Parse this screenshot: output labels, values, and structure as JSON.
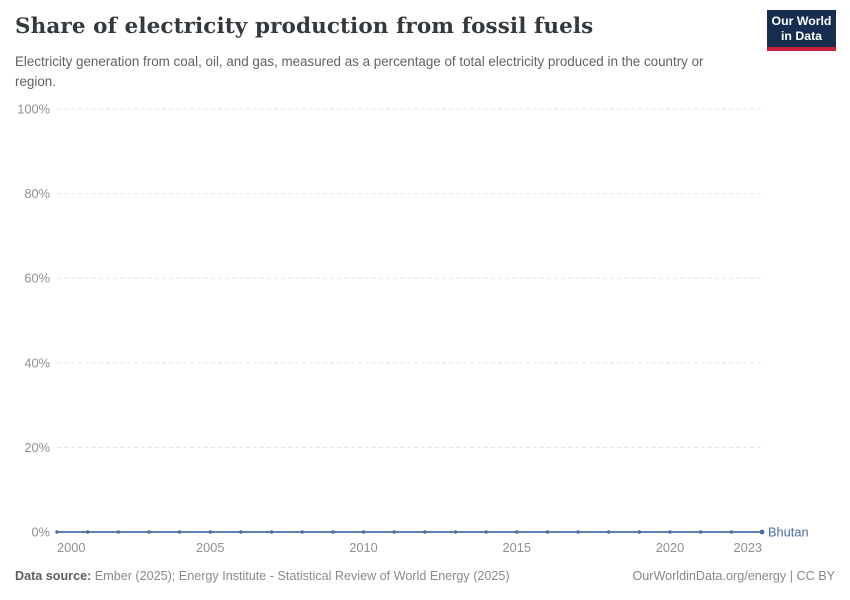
{
  "header": {
    "title": "Share of electricity production from fossil fuels",
    "subtitle": "Electricity generation from coal, oil, and gas, measured as a percentage of total electricity produced in the country or region.",
    "logo": {
      "line1": "Our World",
      "line2": "in Data"
    }
  },
  "chart_data": {
    "type": "line",
    "title": "Share of electricity production from fossil fuels",
    "x": [
      2000,
      2001,
      2002,
      2003,
      2004,
      2005,
      2006,
      2007,
      2008,
      2009,
      2010,
      2011,
      2012,
      2013,
      2014,
      2015,
      2016,
      2017,
      2018,
      2019,
      2020,
      2021,
      2022,
      2023
    ],
    "series": [
      {
        "name": "Bhutan",
        "color": "#4a6ba8",
        "values": [
          0,
          0,
          0,
          0,
          0,
          0,
          0,
          0,
          0,
          0,
          0,
          0,
          0,
          0,
          0,
          0,
          0,
          0,
          0,
          0,
          0,
          0,
          0,
          0
        ]
      }
    ],
    "x_ticks": [
      2000,
      2005,
      2010,
      2015,
      2020,
      2023
    ],
    "y_ticks": [
      0,
      20,
      40,
      60,
      80,
      100
    ],
    "y_tick_suffix": "%",
    "xlim": [
      2000,
      2023
    ],
    "ylim": [
      0,
      100
    ],
    "grid": "horizontal-dashed",
    "legend": "line-end-label",
    "colors": {
      "line": "#4a6ba8",
      "grid": "#e2e2e2",
      "tick_text": "#8e9094"
    }
  },
  "footer": {
    "data_source_label": "Data source:",
    "data_source_text": "Ember (2025); Energy Institute - Statistical Review of World Energy (2025)",
    "credit_url": "OurWorldinData.org/energy",
    "credit_divider": " | ",
    "credit_license": "CC BY"
  }
}
